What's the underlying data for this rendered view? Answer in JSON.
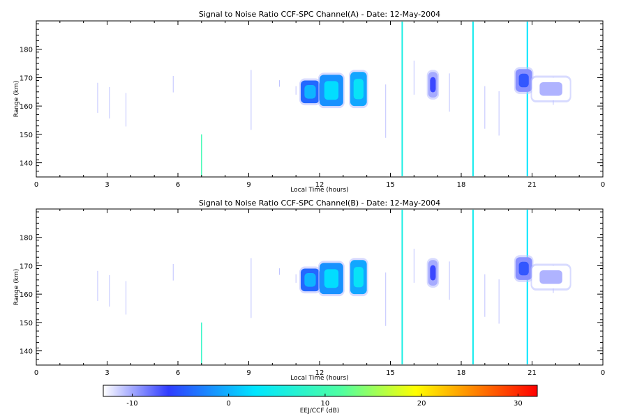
{
  "chart_data": [
    {
      "type": "heatmap",
      "title": "Signal to Noise Ratio CCF-SPC Channel(A) - Date: 12-May-2004",
      "xlabel": "Local Time (hours)",
      "ylabel": "Range (km)",
      "xlim": [
        0,
        24
      ],
      "ylim": [
        135,
        190
      ],
      "xticks": [
        "0",
        "3",
        "6",
        "9",
        "12",
        "15",
        "18",
        "21",
        "0"
      ],
      "yticks": [
        "140",
        "150",
        "160",
        "170",
        "180"
      ],
      "echo_blocks": [
        {
          "x0": 11.2,
          "x1": 12.0,
          "y0": 161,
          "y1": 169,
          "snr": 0
        },
        {
          "x0": 12.0,
          "x1": 13.0,
          "y0": 160,
          "y1": 171,
          "snr": 2
        },
        {
          "x0": 13.3,
          "x1": 14.0,
          "y0": 160,
          "y1": 172,
          "snr": 3
        },
        {
          "x0": 16.6,
          "x1": 17.0,
          "y0": 163,
          "y1": 172,
          "snr": -6
        },
        {
          "x0": 20.3,
          "x1": 21.0,
          "y0": 165,
          "y1": 173,
          "snr": -5
        },
        {
          "x0": 21.0,
          "x1": 22.6,
          "y0": 162,
          "y1": 170,
          "snr": -10
        }
      ],
      "vertical_streaks": [
        {
          "x": 15.5,
          "snr": 5
        },
        {
          "x": 18.5,
          "snr": 4
        },
        {
          "x": 20.8,
          "snr": 2
        },
        {
          "x": 7.0,
          "snr": 10
        }
      ]
    },
    {
      "type": "heatmap",
      "title": "Signal to Noise Ratio CCF-SPC Channel(B) - Date: 12-May-2004",
      "xlabel": "Local Time (hours)",
      "ylabel": "Range (km)",
      "xlim": [
        0,
        24
      ],
      "ylim": [
        135,
        190
      ],
      "xticks": [
        "0",
        "3",
        "6",
        "9",
        "12",
        "15",
        "18",
        "21",
        "0"
      ],
      "yticks": [
        "140",
        "150",
        "160",
        "170",
        "180"
      ],
      "echo_blocks": [
        {
          "x0": 11.2,
          "x1": 12.0,
          "y0": 161,
          "y1": 169,
          "snr": 0
        },
        {
          "x0": 12.0,
          "x1": 13.0,
          "y0": 160,
          "y1": 171,
          "snr": 2
        },
        {
          "x0": 13.3,
          "x1": 14.0,
          "y0": 160,
          "y1": 172,
          "snr": 3
        },
        {
          "x0": 16.6,
          "x1": 17.0,
          "y0": 163,
          "y1": 172,
          "snr": -6
        },
        {
          "x0": 20.3,
          "x1": 21.0,
          "y0": 165,
          "y1": 173,
          "snr": -5
        },
        {
          "x0": 21.0,
          "x1": 22.6,
          "y0": 162,
          "y1": 170,
          "snr": -10
        }
      ],
      "vertical_streaks": [
        {
          "x": 15.5,
          "snr": 5
        },
        {
          "x": 18.5,
          "snr": 4
        },
        {
          "x": 20.8,
          "snr": 2
        },
        {
          "x": 7.0,
          "snr": 8
        }
      ]
    }
  ],
  "colorbar": {
    "label": "EEJ/CCF (dB)",
    "range": [
      -13,
      32
    ],
    "ticks": [
      "-10",
      "0",
      "10",
      "20",
      "30"
    ],
    "tick_values": [
      -10,
      0,
      10,
      20,
      30
    ],
    "colors": [
      "#ffffff",
      "#2f3cff",
      "#00e6ff",
      "#ffff00",
      "#ff0000"
    ]
  }
}
